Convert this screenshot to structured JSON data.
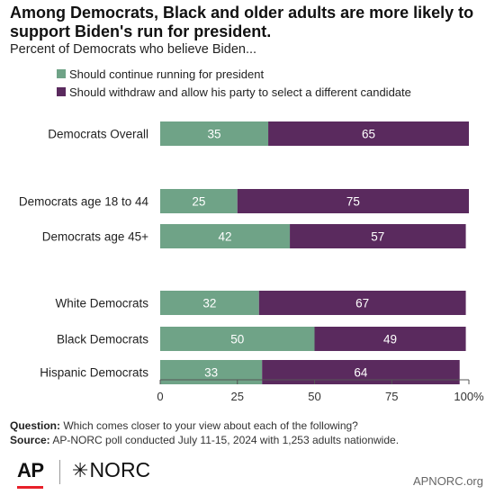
{
  "title": "Among Democrats, Black and older adults are more likely to support Biden's run for president.",
  "subtitle": "Percent of Democrats who believe Biden...",
  "colors": {
    "continue": "#6fa387",
    "withdraw": "#5a2a5e",
    "axis": "#555555"
  },
  "chart_data": {
    "type": "bar",
    "orientation": "horizontal",
    "stacked": true,
    "categories": [
      "Democrats Overall",
      "Democrats age 18 to 44",
      "Democrats age 45+",
      "White Democrats",
      "Black Democrats",
      "Hispanic Democrats"
    ],
    "groups": [
      [
        0
      ],
      [
        1,
        2
      ],
      [
        3,
        4,
        5
      ]
    ],
    "series": [
      {
        "name": "Should continue running for president",
        "values": [
          35,
          25,
          42,
          32,
          50,
          33
        ]
      },
      {
        "name": "Should withdraw and allow his party to select a different candidate",
        "values": [
          65,
          75,
          57,
          67,
          49,
          64
        ]
      }
    ],
    "xlim": [
      0,
      100
    ],
    "xticks": [
      "0",
      "25",
      "50",
      "75",
      "100%"
    ],
    "tick_values": [
      0,
      25,
      50,
      75,
      100
    ],
    "legend_position": "top-left",
    "grid": false
  },
  "notes": {
    "question_label": "Question:",
    "question_text": "Which comes closer to your view about each of the following?",
    "source_label": "Source:",
    "source_text": "AP-NORC poll conducted July 11-15, 2024 with 1,253 adults nationwide."
  },
  "logos": {
    "ap": "AP",
    "norc": "NORC",
    "norc_icon": "norc-star-icon"
  },
  "site": "APNORC.org"
}
